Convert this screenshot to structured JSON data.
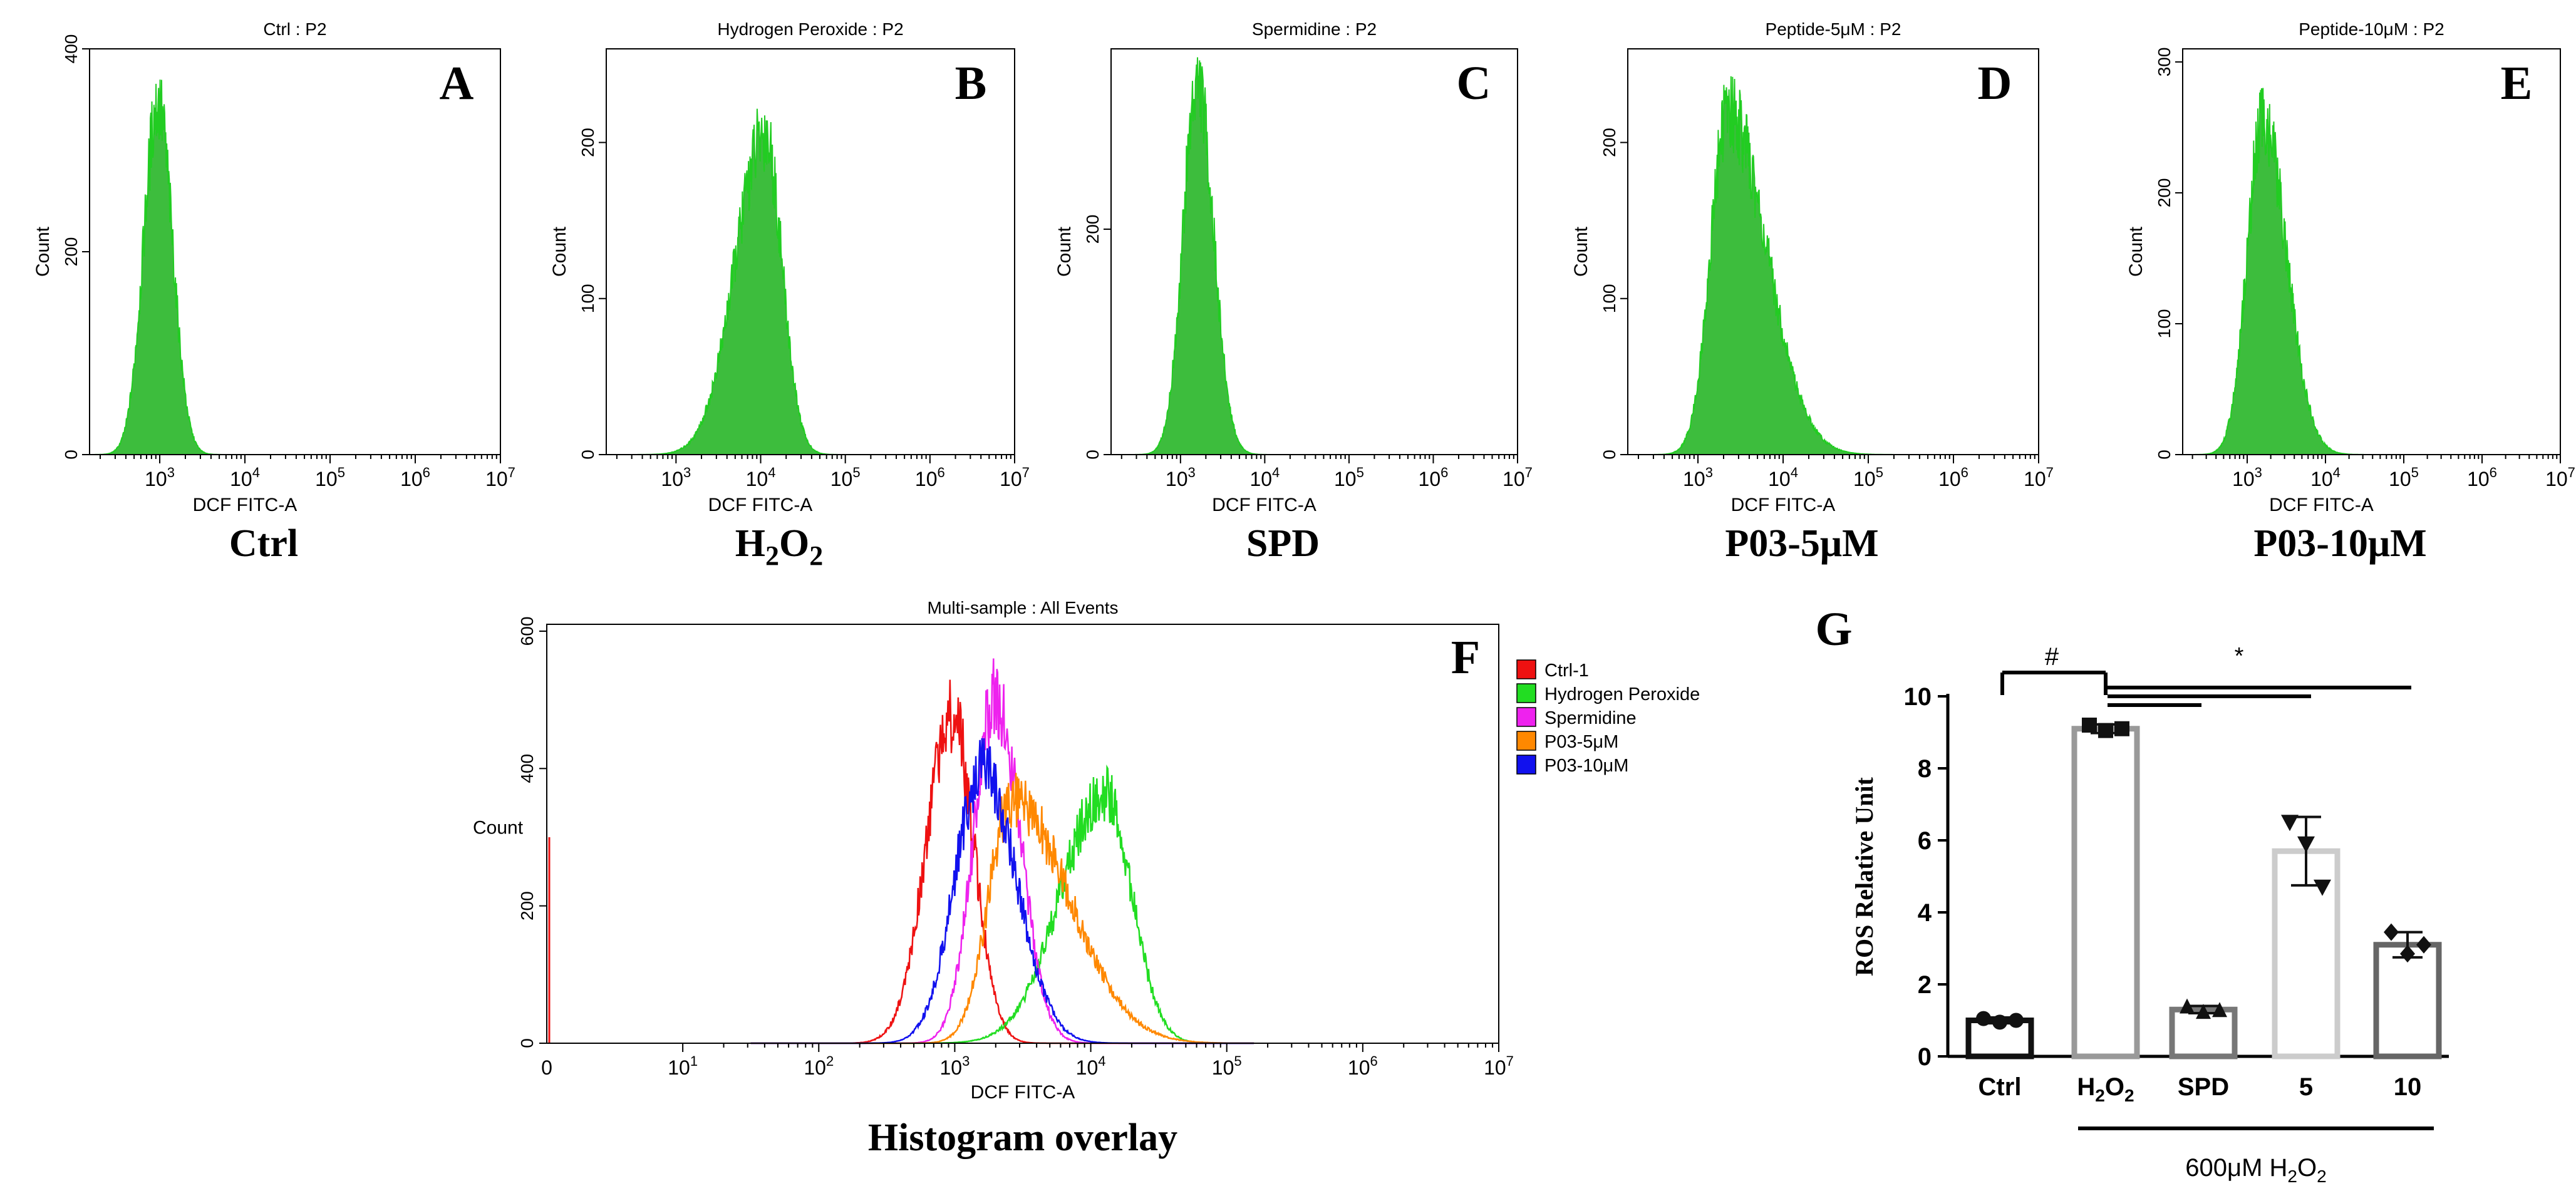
{
  "colors": {
    "fill_green": "#3dbd3d",
    "line_green": "#22cc22",
    "red": "#ee1111",
    "green": "#22dd22",
    "magenta": "#ee22ee",
    "orange": "#ff8800",
    "blue": "#1111ee"
  },
  "chart_data": [
    {
      "type": "area",
      "panel_letter": "A",
      "title": "Ctrl : P2",
      "xlabel": "DCF FITC-A",
      "ylabel": "Count",
      "caption": "Ctrl",
      "x_scale": "log",
      "xlim": [
        150,
        10000000
      ],
      "ylim": [
        0,
        400
      ],
      "yticks": [
        0,
        200,
        400
      ],
      "xticks": [
        "10",
        "10",
        "10",
        "10",
        "10"
      ],
      "xticks_exp": [
        "3",
        "4",
        "5",
        "6",
        "7"
      ],
      "peak_log10": 2.98,
      "peak_count": 345,
      "spread_left": 0.17,
      "spread_right": 0.17
    },
    {
      "type": "area",
      "panel_letter": "B",
      "title": "Hydrogen Peroxide : P2",
      "xlabel": "DCF FITC-A",
      "ylabel": "Count",
      "caption": "H",
      "caption_sub": "2",
      "caption_mid": "O",
      "caption_sub2": "2",
      "x_scale": "log",
      "xlim": [
        150,
        10000000
      ],
      "ylim": [
        0,
        260
      ],
      "yticks": [
        0,
        100,
        200
      ],
      "xticks": [
        "10",
        "10",
        "10",
        "10",
        "10"
      ],
      "xticks_exp": [
        "3",
        "4",
        "5",
        "6",
        "7"
      ],
      "peak_log10": 4.05,
      "peak_count": 205,
      "spread_left": 0.35,
      "spread_right": 0.2
    },
    {
      "type": "area",
      "panel_letter": "C",
      "title": "Spermidine : P2",
      "xlabel": "DCF FITC-A",
      "ylabel": "Count",
      "caption": "SPD",
      "x_scale": "log",
      "xlim": [
        150,
        10000000
      ],
      "ylim": [
        0,
        360
      ],
      "yticks": [
        0,
        200
      ],
      "xticks": [
        "10",
        "10",
        "10",
        "10",
        "10"
      ],
      "xticks_exp": [
        "3",
        "4",
        "5",
        "6",
        "7"
      ],
      "peak_log10": 3.2,
      "peak_count": 330,
      "spread_left": 0.17,
      "spread_right": 0.19
    },
    {
      "type": "area",
      "panel_letter": "D",
      "title": "Peptide-5μM : P2",
      "xlabel": "DCF FITC-A",
      "ylabel": "Count",
      "caption": "P03-5μM",
      "x_scale": "log",
      "xlim": [
        150,
        10000000
      ],
      "ylim": [
        0,
        260
      ],
      "yticks": [
        0,
        100,
        200
      ],
      "xticks": [
        "10",
        "10",
        "10",
        "10",
        "10"
      ],
      "xticks_exp": [
        "3",
        "4",
        "5",
        "6",
        "7"
      ],
      "peak_log10": 3.35,
      "peak_count": 220,
      "spread_left": 0.2,
      "spread_right": 0.45
    },
    {
      "type": "area",
      "panel_letter": "E",
      "title": "Peptide-10μM : P2",
      "xlabel": "DCF FITC-A",
      "ylabel": "Count",
      "caption": "P03-10μM",
      "x_scale": "log",
      "xlim": [
        150,
        10000000
      ],
      "ylim": [
        0,
        310
      ],
      "yticks": [
        0,
        100,
        200,
        300
      ],
      "xticks": [
        "10",
        "10",
        "10",
        "10",
        "10"
      ],
      "xticks_exp": [
        "3",
        "4",
        "5",
        "6",
        "7"
      ],
      "peak_log10": 3.2,
      "peak_count": 255,
      "spread_left": 0.2,
      "spread_right": 0.3
    },
    {
      "type": "line",
      "panel_letter": "F",
      "title": "Multi-sample : All Events",
      "xlabel": "DCF FITC-A",
      "ylabel": "Count",
      "caption": "Histogram overlay",
      "x_scale": "log",
      "xlim": [
        1,
        10000000
      ],
      "ylim": [
        0,
        610
      ],
      "yticks": [
        0,
        200,
        400,
        600
      ],
      "xticks": [
        "0",
        "10",
        "10",
        "10",
        "10",
        "10",
        "10",
        "10"
      ],
      "xticks_exp": [
        "",
        "1",
        "2",
        "3",
        "4",
        "5",
        "6",
        "7"
      ],
      "legend": "top-right",
      "series": [
        {
          "name": "Ctrl-1",
          "color": "red",
          "peak_log10": 2.98,
          "peak_count": 480,
          "spread_left": 0.19,
          "spread_right": 0.16
        },
        {
          "name": "Hydrogen Peroxide",
          "color": "green",
          "peak_log10": 4.1,
          "peak_count": 365,
          "spread_left": 0.32,
          "spread_right": 0.2
        },
        {
          "name": "Spermidine",
          "color": "magenta",
          "peak_log10": 3.3,
          "peak_count": 505,
          "spread_left": 0.16,
          "spread_right": 0.18
        },
        {
          "name": "P03-5μM",
          "color": "orange",
          "peak_log10": 3.42,
          "peak_count": 355,
          "spread_left": 0.17,
          "spread_right": 0.42
        },
        {
          "name": "P03-10μM",
          "color": "blue",
          "peak_log10": 3.2,
          "peak_count": 400,
          "spread_left": 0.2,
          "spread_right": 0.25
        }
      ]
    },
    {
      "type": "bar",
      "panel_letter": "G",
      "ylabel": "ROS Relative Unit",
      "ylim": [
        0,
        10
      ],
      "yticks": [
        "0",
        "2",
        "4",
        "6",
        "8",
        "10"
      ],
      "categories": [
        "Ctrl",
        "H2O2",
        "SPD",
        "5",
        "10"
      ],
      "category_main": [
        "Ctrl",
        "H",
        "SPD",
        "5",
        "10"
      ],
      "category_sub": [
        "",
        "2",
        "",
        "",
        ""
      ],
      "category_mid": [
        "",
        "O",
        "",
        "",
        ""
      ],
      "category_sub2": [
        "",
        "2",
        "",
        "",
        ""
      ],
      "values": [
        1.0,
        9.1,
        1.3,
        5.7,
        3.1
      ],
      "errors": [
        0.08,
        0.12,
        0.1,
        0.95,
        0.35
      ],
      "points": [
        [
          1.05,
          0.95,
          1.0
        ],
        [
          9.2,
          9.05,
          9.1
        ],
        [
          1.4,
          1.25,
          1.3
        ],
        [
          6.5,
          5.9,
          4.7
        ],
        [
          3.45,
          2.85,
          3.1
        ]
      ],
      "markers": [
        "circle",
        "square",
        "triangle",
        "triangle-down",
        "diamond"
      ],
      "bar_colors": [
        "#111111",
        "#999999",
        "#777777",
        "#cccccc",
        "#666666"
      ],
      "significance": [
        {
          "label": "#",
          "from": 0,
          "to": 1
        },
        {
          "label": "*",
          "from": 1,
          "to": 4
        }
      ],
      "group_label_prefix": "600μM H",
      "group_label_sub": "2",
      "group_label_mid": "O",
      "group_label_sub2": "2"
    }
  ]
}
